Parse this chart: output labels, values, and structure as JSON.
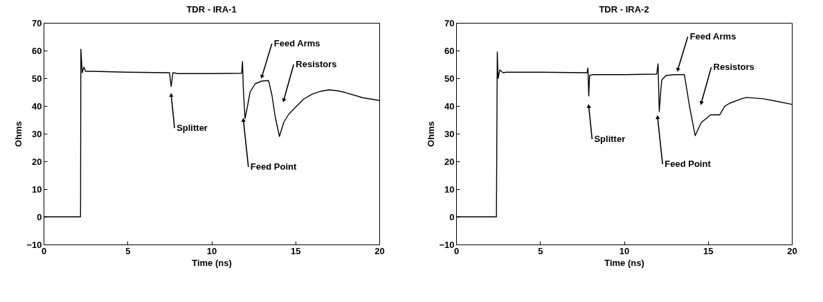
{
  "chart_data": [
    {
      "type": "line",
      "title": "TDR - IRA-1",
      "xlabel": "Time (ns)",
      "ylabel": "Ohms",
      "xlim": [
        0,
        20
      ],
      "ylim": [
        -10,
        70
      ],
      "xticks": [
        0,
        5,
        10,
        15,
        20
      ],
      "yticks": [
        -10,
        0,
        10,
        20,
        30,
        40,
        50,
        60,
        70
      ],
      "grid": false,
      "series": [
        {
          "color": "#000000",
          "x": [
            0,
            2.2,
            2.22,
            2.3,
            2.4,
            2.5,
            3,
            5,
            7.5,
            7.6,
            7.7,
            8,
            10,
            11.8,
            11.85,
            11.9,
            12.0,
            12.15,
            12.3,
            12.6,
            13,
            13.4,
            13.6,
            13.8,
            14.05,
            14.3,
            14.6,
            15,
            15.5,
            16,
            16.5,
            17,
            17.5,
            18,
            19,
            20
          ],
          "values": [
            0,
            0,
            60.5,
            52,
            54,
            52.5,
            52.5,
            52.2,
            52,
            47,
            52,
            51.7,
            51.7,
            51.8,
            56,
            46,
            35.5,
            40,
            45,
            48,
            49,
            49.2,
            44,
            36,
            29,
            34,
            37,
            39.5,
            42.5,
            44.3,
            45.3,
            45.8,
            45.5,
            44.8,
            43,
            42
          ]
        }
      ],
      "annotations": [
        {
          "text": "Splitter",
          "x": 7.6,
          "y": 44
        },
        {
          "text": "Feed Point",
          "x": 11.9,
          "y": 35
        },
        {
          "text": "Feed Arms",
          "x": 13.0,
          "y": 50.5
        },
        {
          "text": "Resistors",
          "x": 14.3,
          "y": 42
        }
      ]
    },
    {
      "type": "line",
      "title": "TDR - IRA-2",
      "xlabel": "Time (ns)",
      "ylabel": "Ohms",
      "xlim": [
        0,
        20
      ],
      "ylim": [
        -10,
        70
      ],
      "xticks": [
        0,
        5,
        10,
        15,
        20
      ],
      "yticks": [
        -10,
        0,
        10,
        20,
        30,
        40,
        50,
        60,
        70
      ],
      "grid": false,
      "series": [
        {
          "color": "#000000",
          "x": [
            0,
            2.4,
            2.45,
            2.5,
            2.6,
            2.8,
            3,
            5,
            7.8,
            7.85,
            7.9,
            7.95,
            8.1,
            10,
            11.95,
            12.03,
            12.1,
            12.2,
            12.25,
            12.5,
            13,
            13.6,
            13.9,
            14.24,
            14.6,
            15.16,
            15.7,
            16.0,
            16.3,
            17,
            17.3,
            18.3,
            19,
            20
          ],
          "values": [
            0,
            0,
            59.5,
            50,
            53,
            52,
            52.2,
            52.2,
            52,
            53.7,
            43.6,
            51,
            51.3,
            51.3,
            51.5,
            55.2,
            38,
            46,
            49.4,
            51,
            51.3,
            51.3,
            40,
            29.3,
            34,
            36.8,
            36.8,
            39.9,
            41,
            42.6,
            43.1,
            42.6,
            41.8,
            40.6
          ]
        }
      ],
      "annotations": [
        {
          "text": "Splitter",
          "x": 7.9,
          "y": 40
        },
        {
          "text": "Feed Point",
          "x": 12.0,
          "y": 36
        },
        {
          "text": "Feed Arms",
          "x": 13.2,
          "y": 53
        },
        {
          "text": "Resistors",
          "x": 14.6,
          "y": 41
        }
      ]
    }
  ]
}
